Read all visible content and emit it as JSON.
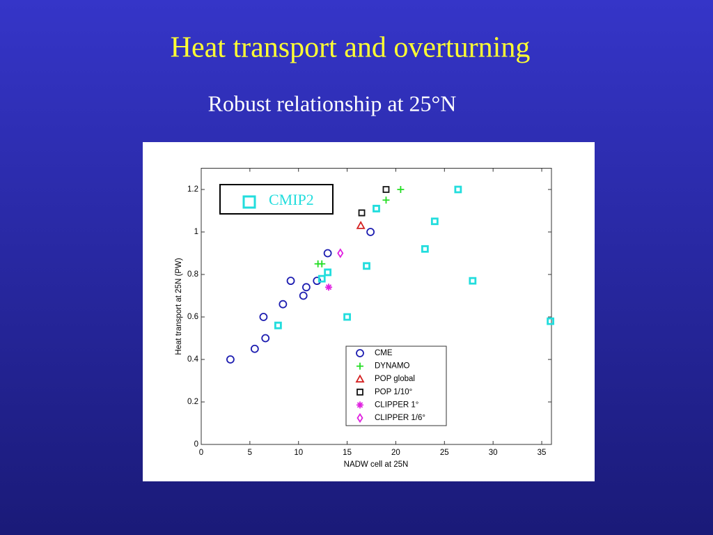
{
  "title": "Heat transport and overturning",
  "subtitle": "Robust relationship at 25°N",
  "chart_data": {
    "type": "scatter",
    "xlabel": "NADW cell at 25N",
    "ylabel": "Heat transport at 25N (PW)",
    "xlim": [
      0,
      36
    ],
    "ylim": [
      0,
      1.3
    ],
    "xticks": [
      0,
      5,
      10,
      15,
      20,
      25,
      30,
      35
    ],
    "yticks": [
      0,
      0.2,
      0.4,
      0.6,
      0.8,
      1,
      1.2
    ],
    "series": [
      {
        "name": "CME",
        "color": "#1c1cb0",
        "marker": "o",
        "x": [
          3.0,
          5.5,
          6.6,
          6.4,
          8.4,
          9.2,
          10.5,
          10.8,
          11.9,
          13.0,
          17.4
        ],
        "values": [
          0.4,
          0.45,
          0.5,
          0.6,
          0.66,
          0.77,
          0.7,
          0.74,
          0.77,
          0.9,
          1.0
        ]
      },
      {
        "name": "DYNAMO",
        "color": "#22dd22",
        "marker": "+",
        "x": [
          12.0,
          12.4,
          19.0,
          20.5
        ],
        "values": [
          0.85,
          0.85,
          1.15,
          1.2
        ]
      },
      {
        "name": "POP global",
        "color": "#d42020",
        "marker": "^",
        "x": [
          16.4
        ],
        "values": [
          1.03
        ]
      },
      {
        "name": "POP 1/10°",
        "color": "#111111",
        "marker": "s",
        "x": [
          16.5,
          19.0
        ],
        "values": [
          1.09,
          1.2
        ]
      },
      {
        "name": "CLIPPER 1°",
        "color": "#e020e0",
        "marker": "*",
        "x": [
          13.1
        ],
        "values": [
          0.74
        ]
      },
      {
        "name": "CLIPPER 1/6°",
        "color": "#e020e0",
        "marker": "d",
        "x": [
          14.3
        ],
        "values": [
          0.9
        ]
      },
      {
        "name": "CMIP2",
        "color": "#22dddd",
        "marker": "s",
        "x": [
          7.9,
          12.4,
          13.0,
          15.0,
          17.0,
          18.0,
          23.0,
          24.0,
          26.4,
          27.9,
          35.9
        ],
        "values": [
          0.56,
          0.78,
          0.81,
          0.6,
          0.84,
          1.11,
          0.92,
          1.05,
          1.2,
          0.77,
          0.58
        ]
      }
    ]
  }
}
